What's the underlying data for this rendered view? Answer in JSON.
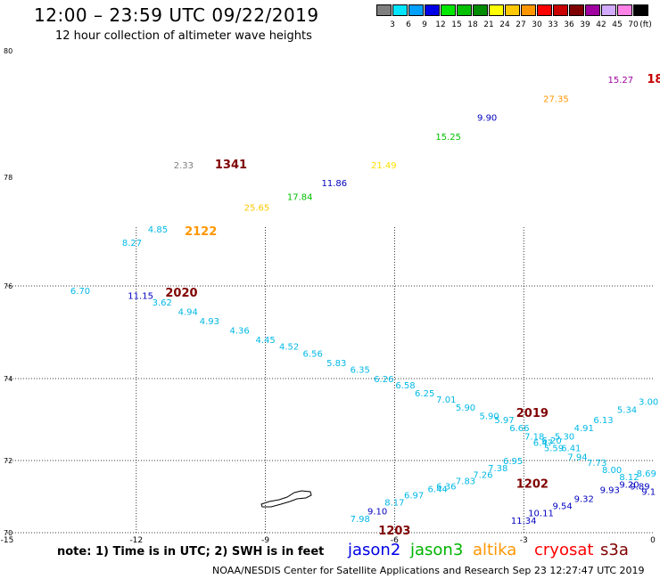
{
  "header": {
    "title": "12:00 – 23:59 UTC 09/22/2019",
    "subtitle": "12 hour collection of altimeter wave heights"
  },
  "legend": {
    "unit": "(ft)",
    "items": [
      {
        "label": "3",
        "color": "#7f7f7f"
      },
      {
        "label": "6",
        "color": "#00e5ff"
      },
      {
        "label": "9",
        "color": "#00a0ff"
      },
      {
        "label": "12",
        "color": "#0000e6"
      },
      {
        "label": "15",
        "color": "#00e600"
      },
      {
        "label": "18",
        "color": "#00c000"
      },
      {
        "label": "21",
        "color": "#008c00"
      },
      {
        "label": "24",
        "color": "#ffff00"
      },
      {
        "label": "27",
        "color": "#ffc800"
      },
      {
        "label": "30",
        "color": "#ff9600"
      },
      {
        "label": "33",
        "color": "#ff0000"
      },
      {
        "label": "36",
        "color": "#c80000"
      },
      {
        "label": "39",
        "color": "#7f0000"
      },
      {
        "label": "42",
        "color": "#a000a0"
      },
      {
        "label": "45",
        "color": "#d2aaff"
      },
      {
        "label": "70",
        "color": "#ff82e6"
      },
      {
        "label": "",
        "color": "#000000"
      }
    ]
  },
  "map": {
    "lon_ticks": [
      "-15",
      "-12",
      "-9",
      "-6",
      "-3",
      "0"
    ],
    "lat_ticks": [
      "80",
      "78",
      "76",
      "74",
      "72",
      "70"
    ],
    "coastline": "island",
    "observations": [
      {
        "text": "6.70",
        "lon": -13.3,
        "lat": 75.9,
        "color": "#00b8e6"
      },
      {
        "text": "11.15",
        "lon": -11.9,
        "lat": 75.8,
        "color": "#0000c0"
      },
      {
        "text": "3.62",
        "lon": -11.4,
        "lat": 75.65,
        "color": "#00b8e6"
      },
      {
        "text": "4.94",
        "lon": -10.8,
        "lat": 75.45,
        "color": "#00b8e6"
      },
      {
        "text": "4.93",
        "lon": -10.3,
        "lat": 75.25,
        "color": "#00b8e6"
      },
      {
        "text": "4.36",
        "lon": -9.6,
        "lat": 75.05,
        "color": "#00b8e6"
      },
      {
        "text": "4.45",
        "lon": -9.0,
        "lat": 74.85,
        "color": "#00b8e6"
      },
      {
        "text": "4.52",
        "lon": -8.45,
        "lat": 74.7,
        "color": "#00b8e6"
      },
      {
        "text": "6.56",
        "lon": -7.9,
        "lat": 74.55,
        "color": "#00b8e6"
      },
      {
        "text": "5.83",
        "lon": -7.35,
        "lat": 74.35,
        "color": "#00b8e6"
      },
      {
        "text": "6.35",
        "lon": -6.8,
        "lat": 74.2,
        "color": "#00b8e6"
      },
      {
        "text": "6.26",
        "lon": -6.25,
        "lat": 74.0,
        "color": "#00b8e6"
      },
      {
        "text": "6.58",
        "lon": -5.75,
        "lat": 73.85,
        "color": "#00b8e6"
      },
      {
        "text": "6.25",
        "lon": -5.3,
        "lat": 73.65,
        "color": "#00b8e6"
      },
      {
        "text": "7.01",
        "lon": -4.8,
        "lat": 73.5,
        "color": "#00b8e6"
      },
      {
        "text": "5.90",
        "lon": -4.35,
        "lat": 73.3,
        "color": "#00b8e6"
      },
      {
        "text": "5.90",
        "lon": -3.8,
        "lat": 73.1,
        "color": "#00b8e6"
      },
      {
        "text": "5.97",
        "lon": -3.45,
        "lat": 73.0,
        "color": "#00b8e6"
      },
      {
        "text": "6.66",
        "lon": -3.1,
        "lat": 72.8,
        "color": "#00b8e6"
      },
      {
        "text": "7.18",
        "lon": -2.75,
        "lat": 72.6,
        "color": "#00b8e6"
      },
      {
        "text": "6.20",
        "lon": -2.35,
        "lat": 72.5,
        "color": "#00b8e6"
      },
      {
        "text": "5.59",
        "lon": -2.3,
        "lat": 72.32,
        "color": "#00b8e6"
      },
      {
        "text": "6.41",
        "lon": -1.9,
        "lat": 72.32,
        "color": "#00b8e6"
      },
      {
        "text": "7.94",
        "lon": -1.75,
        "lat": 72.1,
        "color": "#00b8e6"
      },
      {
        "text": "7.73",
        "lon": -1.3,
        "lat": 71.95,
        "color": "#00b8e6"
      },
      {
        "text": "8.00",
        "lon": -0.95,
        "lat": 71.75,
        "color": "#00b8e6"
      },
      {
        "text": "8.12",
        "lon": -0.55,
        "lat": 71.55,
        "color": "#00b8e6"
      },
      {
        "text": "8.69",
        "lon": -0.15,
        "lat": 71.65,
        "color": "#00b8e6"
      },
      {
        "text": "9.20",
        "lon": -0.55,
        "lat": 71.35,
        "color": "#0000c0"
      },
      {
        "text": "9.93",
        "lon": -1.0,
        "lat": 71.2,
        "color": "#0000c0"
      },
      {
        "text": "9.89",
        "lon": -0.3,
        "lat": 71.3,
        "color": "#0000c0"
      },
      {
        "text": "9.1",
        "lon": -0.1,
        "lat": 71.15,
        "color": "#0000c0"
      },
      {
        "text": "9.32",
        "lon": -1.6,
        "lat": 70.95,
        "color": "#0000c0"
      },
      {
        "text": "9.54",
        "lon": -2.1,
        "lat": 70.75,
        "color": "#0000c0"
      },
      {
        "text": "10.11",
        "lon": -2.6,
        "lat": 70.55,
        "color": "#0000c0"
      },
      {
        "text": "11.34",
        "lon": -3.0,
        "lat": 70.35,
        "color": "#0000c0"
      },
      {
        "text": "3.00",
        "lon": -0.1,
        "lat": 73.45,
        "color": "#00b8e6"
      },
      {
        "text": "5.34",
        "lon": -0.6,
        "lat": 73.25,
        "color": "#00b8e6"
      },
      {
        "text": "6.13",
        "lon": -1.15,
        "lat": 73.0,
        "color": "#00b8e6"
      },
      {
        "text": "4.91",
        "lon": -1.6,
        "lat": 72.8,
        "color": "#00b8e6"
      },
      {
        "text": "5.30",
        "lon": -2.05,
        "lat": 72.6,
        "color": "#00b8e6"
      },
      {
        "text": "6.47",
        "lon": -2.55,
        "lat": 72.45,
        "color": "#00b8e6"
      },
      {
        "text": "6.95",
        "lon": -3.25,
        "lat": 72.0,
        "color": "#00b8e6"
      },
      {
        "text": "7.38",
        "lon": -3.6,
        "lat": 71.8,
        "color": "#00b8e6"
      },
      {
        "text": "7.26",
        "lon": -3.95,
        "lat": 71.62,
        "color": "#00b8e6"
      },
      {
        "text": "7.83",
        "lon": -4.35,
        "lat": 71.45,
        "color": "#00b8e6"
      },
      {
        "text": "6.36",
        "lon": -4.8,
        "lat": 71.3,
        "color": "#00b8e6"
      },
      {
        "text": "6.44",
        "lon": -5.0,
        "lat": 71.22,
        "color": "#00b8e6"
      },
      {
        "text": "6.97",
        "lon": -5.55,
        "lat": 71.05,
        "color": "#00b8e6"
      },
      {
        "text": "8.17",
        "lon": -6.0,
        "lat": 70.85,
        "color": "#00b8e6"
      },
      {
        "text": "9.10",
        "lon": -6.4,
        "lat": 70.6,
        "color": "#0000c0"
      },
      {
        "text": "7.98",
        "lon": -6.8,
        "lat": 70.4,
        "color": "#00b8e6"
      },
      {
        "text": "8.27",
        "lon": -12.1,
        "lat": 76.8,
        "color": "#00b8e6"
      },
      {
        "text": "4.85",
        "lon": -11.5,
        "lat": 77.05,
        "color": "#00b8e6"
      },
      {
        "text": "25.65",
        "lon": -9.2,
        "lat": 77.45,
        "color": "#ffc800"
      },
      {
        "text": "17.84",
        "lon": -8.2,
        "lat": 77.65,
        "color": "#00c000"
      },
      {
        "text": "11.86",
        "lon": -7.4,
        "lat": 77.9,
        "color": "#0000c0"
      },
      {
        "text": "2.33",
        "lon": -10.9,
        "lat": 78.2,
        "color": "#7f7f7f"
      },
      {
        "text": "21.49",
        "lon": -6.25,
        "lat": 78.2,
        "color": "#ffe000"
      },
      {
        "text": "15.25",
        "lon": -4.75,
        "lat": 78.65,
        "color": "#00c000"
      },
      {
        "text": "9.90",
        "lon": -3.85,
        "lat": 78.95,
        "color": "#0000c0"
      },
      {
        "text": "27.35",
        "lon": -2.25,
        "lat": 79.25,
        "color": "#ff9600"
      },
      {
        "text": "15.27",
        "lon": -0.75,
        "lat": 79.55,
        "color": "#a000a0"
      },
      {
        "text": "1341",
        "lon": -9.8,
        "lat": 78.2,
        "color": "#7f0000",
        "time": true
      },
      {
        "text": "2122",
        "lon": -10.5,
        "lat": 77.0,
        "color": "#ff9600",
        "time": true
      },
      {
        "text": "2020",
        "lon": -10.95,
        "lat": 75.85,
        "color": "#7f0000",
        "time": true
      },
      {
        "text": "2019",
        "lon": -2.8,
        "lat": 73.15,
        "color": "#7f0000",
        "time": true
      },
      {
        "text": "1202",
        "lon": -2.8,
        "lat": 71.35,
        "color": "#7f0000",
        "time": true
      },
      {
        "text": "1203",
        "lon": -6.0,
        "lat": 70.05,
        "color": "#7f0000",
        "time": true
      },
      {
        "text": "18",
        "lon": 0.05,
        "lat": 79.55,
        "color": "#c80000",
        "time": true
      }
    ]
  },
  "footer": {
    "note": "note:  1) Time is in UTC;  2) SWH is in feet",
    "satellites": [
      {
        "name": "jason2",
        "color": "#0000e6"
      },
      {
        "name": "jason3",
        "color": "#00b400"
      },
      {
        "name": "altika",
        "color": "#ff9600"
      },
      {
        "name": "cryosat",
        "color": "#ff0000"
      },
      {
        "name": "s3a",
        "color": "#7f0000"
      }
    ],
    "credit": "NOAA/NESDIS Center for Satellite Applications and Research     Sep 23 12:27:47 UTC 2019"
  }
}
